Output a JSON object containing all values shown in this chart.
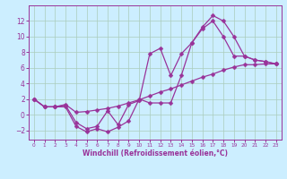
{
  "xlabel": "Windchill (Refroidissement éolien,°C)",
  "xlim": [
    -0.5,
    23.5
  ],
  "ylim": [
    -3.2,
    14.0
  ],
  "xticks": [
    0,
    1,
    2,
    3,
    4,
    5,
    6,
    7,
    8,
    9,
    10,
    11,
    12,
    13,
    14,
    15,
    16,
    17,
    18,
    19,
    20,
    21,
    22,
    23
  ],
  "yticks": [
    -2,
    0,
    2,
    4,
    6,
    8,
    10,
    12
  ],
  "bg_color": "#cceeff",
  "grid_color": "#aaccbb",
  "line_color": "#993399",
  "line1_x": [
    0,
    1,
    2,
    3,
    4,
    5,
    6,
    7,
    8,
    9,
    10,
    11,
    12,
    13,
    14,
    15,
    16,
    17,
    18,
    19,
    20,
    21,
    22,
    23
  ],
  "line1_y": [
    2,
    1,
    1,
    1,
    -1.5,
    -2.2,
    -1.8,
    -2.2,
    -1.6,
    -0.8,
    2.0,
    1.5,
    1.5,
    1.5,
    5.0,
    9.2,
    11.2,
    12.7,
    12.0,
    10.0,
    7.5,
    7.0,
    6.8,
    6.5
  ],
  "line2_x": [
    0,
    1,
    2,
    3,
    4,
    5,
    6,
    7,
    8,
    9,
    10,
    11,
    12,
    13,
    14,
    15,
    16,
    17,
    18,
    19,
    20,
    21,
    22,
    23
  ],
  "line2_y": [
    2,
    1,
    1,
    1.2,
    -1.0,
    -1.8,
    -1.5,
    0.5,
    -1.3,
    1.3,
    1.8,
    7.8,
    8.5,
    5.0,
    7.8,
    9.2,
    11.0,
    12.0,
    10.0,
    7.5,
    7.5,
    7.0,
    6.8,
    6.5
  ],
  "line3_x": [
    0,
    1,
    2,
    3,
    4,
    5,
    6,
    7,
    8,
    9,
    10,
    11,
    12,
    13,
    14,
    15,
    16,
    17,
    18,
    19,
    20,
    21,
    22,
    23
  ],
  "line3_y": [
    2,
    1.0,
    1.0,
    1.3,
    0.3,
    0.4,
    0.6,
    0.8,
    1.1,
    1.5,
    1.9,
    2.4,
    2.9,
    3.3,
    3.8,
    4.3,
    4.8,
    5.2,
    5.7,
    6.1,
    6.4,
    6.4,
    6.5,
    6.5
  ],
  "xlabel_fontsize": 5.5,
  "tick_fontsize_x": 4.2,
  "tick_fontsize_y": 5.5
}
